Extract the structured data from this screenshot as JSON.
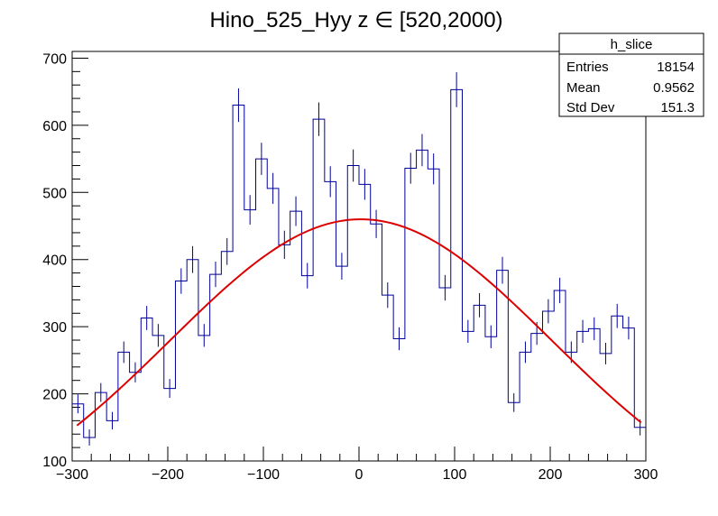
{
  "chart_data": {
    "type": "histogram",
    "title": "Hino_525_Hyy z  ∈ [520,2000)",
    "xlabel": "",
    "ylabel": "",
    "xlim": [
      -300,
      300
    ],
    "ylim": [
      100,
      710
    ],
    "x_ticks": [
      -300,
      -200,
      -100,
      0,
      100,
      200,
      300
    ],
    "x_tick_labels": [
      "−300",
      "−200",
      "−100",
      "0",
      "100",
      "200",
      "300"
    ],
    "y_ticks": [
      100,
      200,
      300,
      400,
      500,
      600,
      700
    ],
    "y_tick_labels": [
      "100",
      "200",
      "300",
      "400",
      "500",
      "600",
      "700"
    ],
    "grid": false,
    "histogram_color": "#000099",
    "fit_color": "#dd0000",
    "bin_edges_start": -300,
    "bin_width": 12,
    "values": [
      185,
      135,
      202,
      160,
      262,
      232,
      313,
      287,
      208,
      368,
      400,
      287,
      378,
      412,
      630,
      474,
      550,
      506,
      422,
      472,
      376,
      609,
      516,
      390,
      540,
      512,
      453,
      347,
      282,
      536,
      563,
      535,
      358,
      653,
      293,
      332,
      285,
      384,
      187,
      262,
      290,
      323,
      354,
      262,
      293,
      297,
      260,
      316,
      298,
      150
    ],
    "errors": [
      14,
      12,
      14,
      13,
      16,
      15,
      18,
      17,
      14,
      19,
      20,
      17,
      19,
      20,
      25,
      22,
      24,
      23,
      21,
      22,
      19,
      25,
      23,
      20,
      24,
      23,
      21,
      19,
      17,
      23,
      24,
      23,
      19,
      26,
      17,
      18,
      17,
      20,
      14,
      16,
      17,
      18,
      19,
      16,
      17,
      17,
      16,
      18,
      17,
      12
    ],
    "fit": {
      "type": "gaussian",
      "amplitude": 460,
      "mean": 2,
      "sigma": 200,
      "x_range": [
        -295,
        295
      ]
    },
    "stats_box": {
      "name": "h_slice",
      "entries_label": "Entries",
      "entries_value": "18154",
      "mean_label": "Mean",
      "mean_value": "0.9562",
      "stddev_label": "Std Dev",
      "stddev_value": "151.3"
    }
  }
}
